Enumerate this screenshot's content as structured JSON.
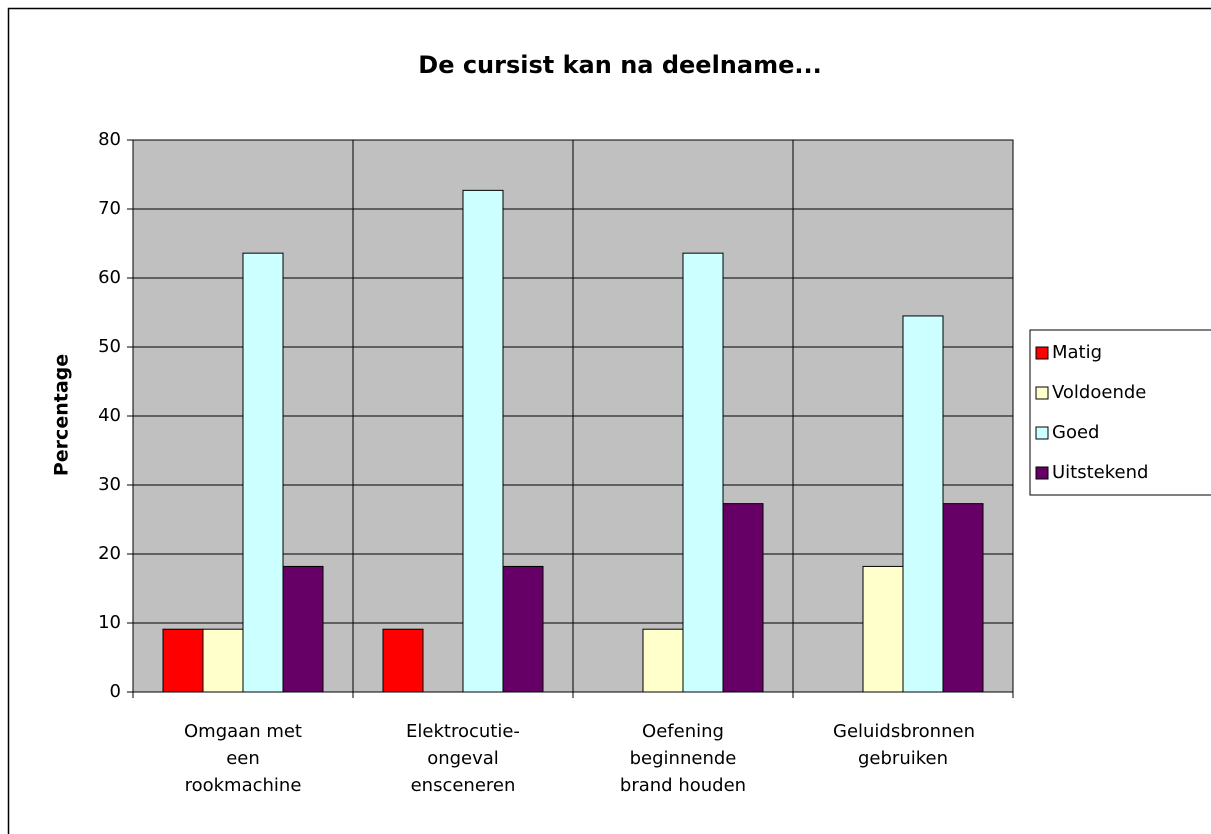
{
  "chart_data": {
    "type": "bar",
    "title": "De cursist kan na deelname...",
    "y_label": "Percentage",
    "categories": [
      "Omgaan met een rookmachine",
      "Elektrocutie-ongeval ensceneren",
      "Oefening beginnende brand houden",
      "Geluidsbronnen gebruiken"
    ],
    "series": [
      {
        "name": "Matig",
        "color": "#ff0000",
        "values": [
          9.1,
          9.1,
          0,
          0
        ]
      },
      {
        "name": "Voldoende",
        "color": "#ffffcc",
        "values": [
          9.1,
          0,
          9.1,
          18.2
        ]
      },
      {
        "name": "Goed",
        "color": "#ccffff",
        "values": [
          63.6,
          72.7,
          63.6,
          54.5
        ]
      },
      {
        "name": "Uitstekend",
        "color": "#660066",
        "values": [
          18.2,
          18.2,
          27.3,
          27.3
        ]
      }
    ],
    "ylim": [
      0,
      80
    ],
    "yticks": [
      0,
      10,
      20,
      30,
      40,
      50,
      60,
      70,
      80
    ],
    "grid": true,
    "legend": "right"
  }
}
